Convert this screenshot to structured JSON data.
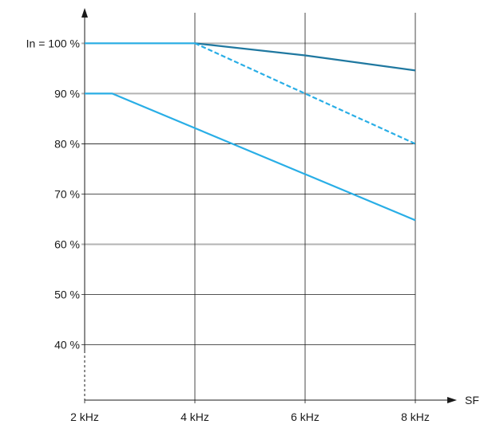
{
  "chart_data": {
    "type": "line",
    "xlabel": "SF",
    "ylabel": "",
    "x_ticks": [
      {
        "value": 2,
        "label": "2 kHz"
      },
      {
        "value": 4,
        "label": "4 kHz"
      },
      {
        "value": 6,
        "label": "6 kHz"
      },
      {
        "value": 8,
        "label": "8 kHz"
      }
    ],
    "y_ticks": [
      {
        "value": 100,
        "label": "In = 100 %"
      },
      {
        "value": 90,
        "label": "90 %"
      },
      {
        "value": 80,
        "label": "80 %"
      },
      {
        "value": 70,
        "label": "70 %"
      },
      {
        "value": 60,
        "label": "60 %"
      },
      {
        "value": 50,
        "label": "50 %"
      },
      {
        "value": 40,
        "label": "40 %"
      }
    ],
    "xlim": [
      2,
      8
    ],
    "ylim": [
      29,
      106
    ],
    "grid": true,
    "series": [
      {
        "color": "#1f78a0",
        "style": "solid",
        "points": [
          [
            4,
            100
          ],
          [
            6,
            97.6
          ],
          [
            8,
            94.6
          ]
        ]
      },
      {
        "color": "#29aee6",
        "style": "dashed",
        "points": [
          [
            4,
            100
          ],
          [
            6,
            90
          ],
          [
            8,
            80
          ]
        ]
      },
      {
        "color": "#29aee6",
        "style": "solid",
        "points": [
          [
            2,
            100
          ],
          [
            4,
            100
          ]
        ]
      },
      {
        "color": "#29aee6",
        "style": "solid",
        "points": [
          [
            2,
            90
          ],
          [
            2.5,
            90
          ],
          [
            8,
            64.8
          ]
        ]
      }
    ]
  }
}
